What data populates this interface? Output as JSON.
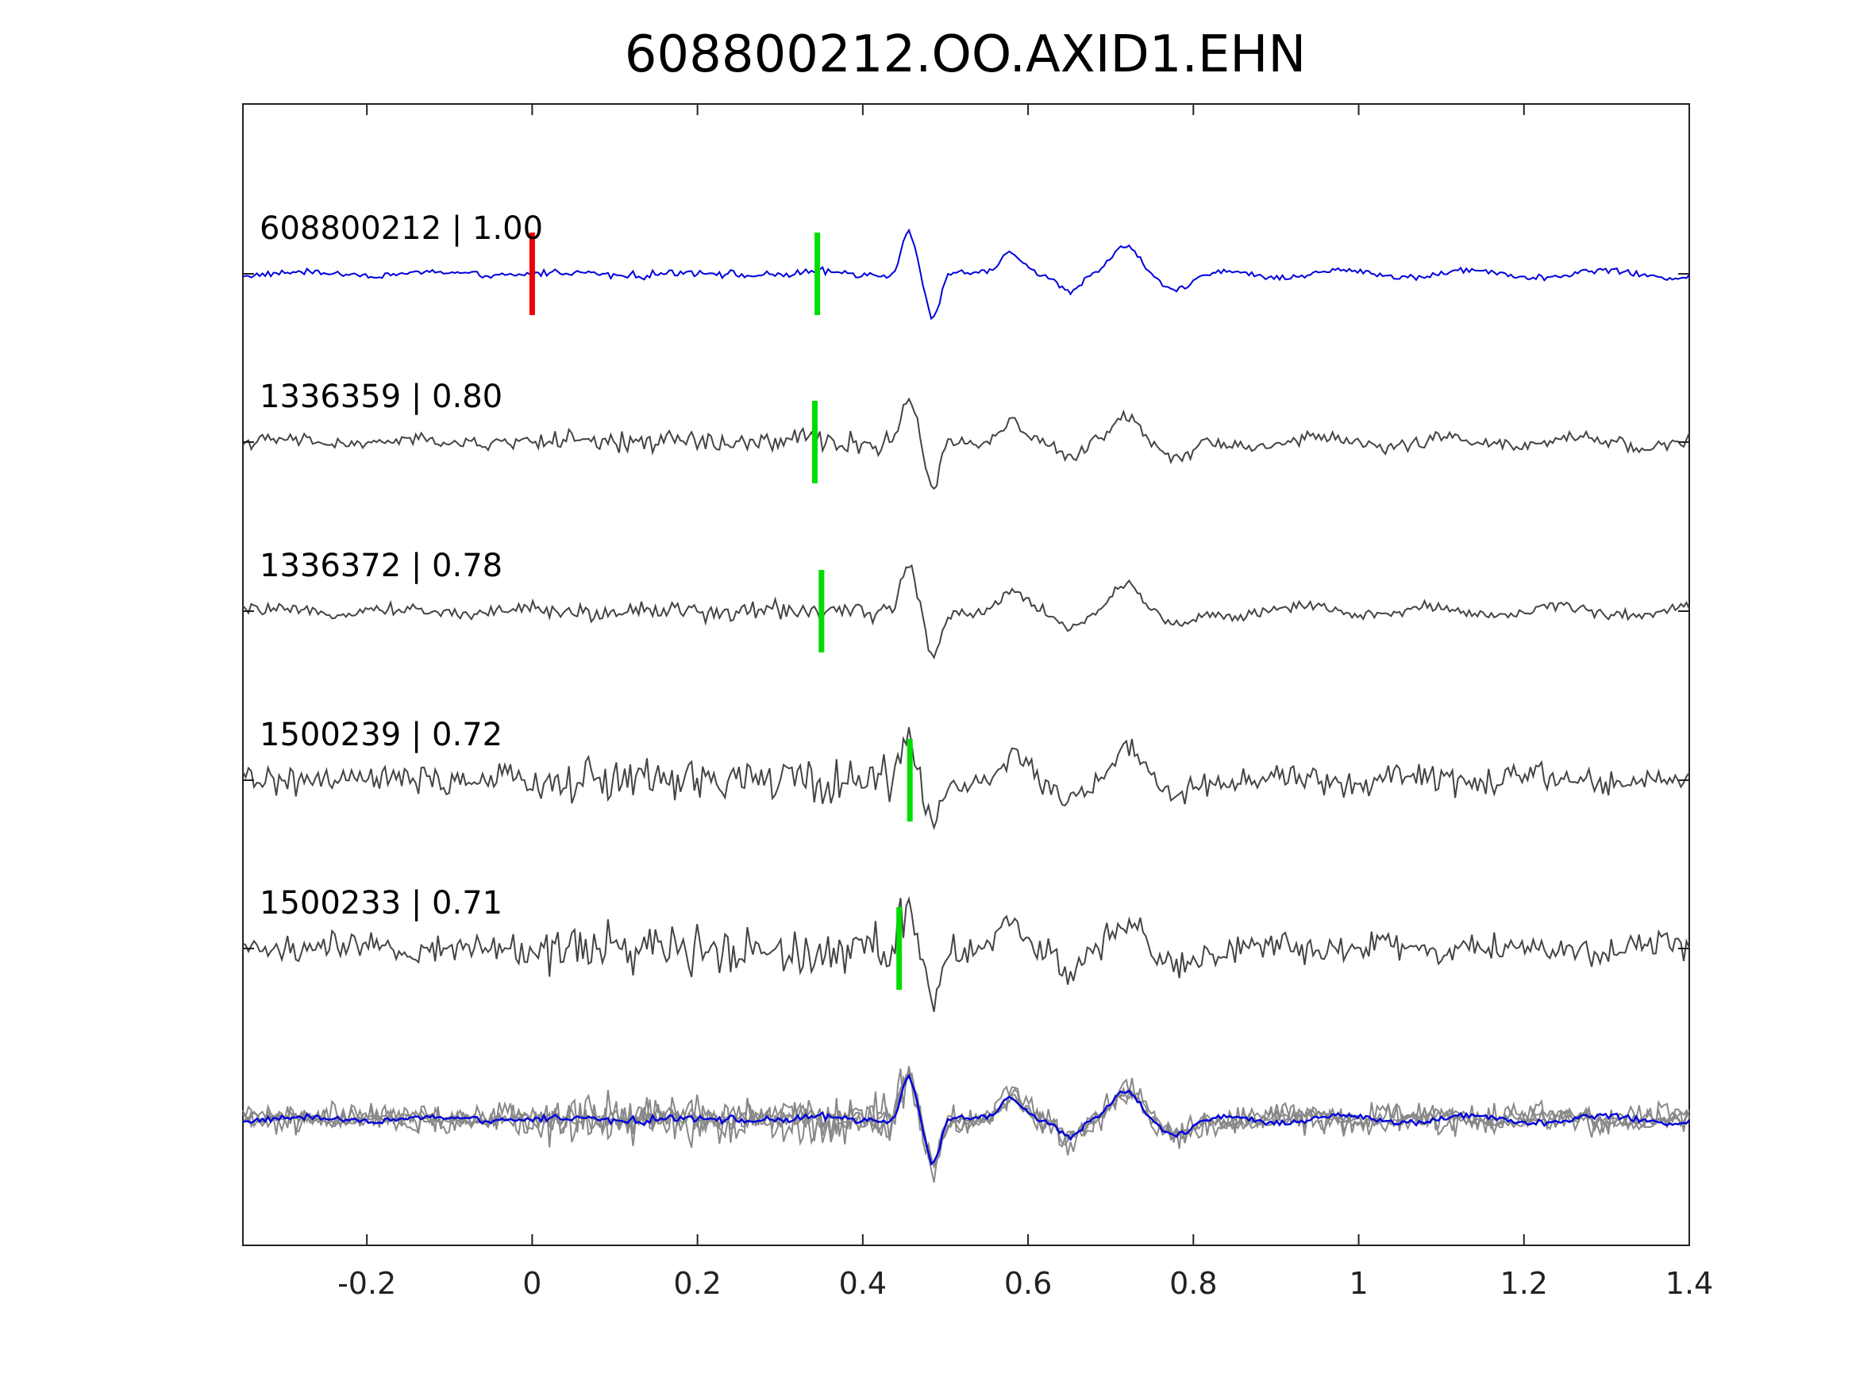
{
  "chart_data": {
    "type": "line",
    "title": "608800212.OO.AXID1.EHN",
    "xlabel": "",
    "ylabel": "",
    "xlim": [
      -0.35,
      1.4
    ],
    "x_ticks": [
      -0.2,
      0,
      0.2,
      0.4,
      0.6,
      0.8,
      1,
      1.2,
      1.4
    ],
    "x_tick_labels": [
      "-0.2",
      "0",
      "0.2",
      "0.4",
      "0.6",
      "0.8",
      "1",
      "1.2",
      "1.4"
    ],
    "grid": false,
    "traces": [
      {
        "label": "608800212 | 1.00",
        "event_id": "608800212",
        "correlation": 1.0,
        "color": "#0000dd",
        "pick": 0.345,
        "origin_marker": 0.0
      },
      {
        "label": "1336359 | 0.80",
        "event_id": "1336359",
        "correlation": 0.8,
        "color": "#444444",
        "pick": 0.342
      },
      {
        "label": "1336372 | 0.78",
        "event_id": "1336372",
        "correlation": 0.78,
        "color": "#444444",
        "pick": 0.35
      },
      {
        "label": "1500239 | 0.72",
        "event_id": "1500239",
        "correlation": 0.72,
        "color": "#444444",
        "pick": 0.457
      },
      {
        "label": "1500233 | 0.71",
        "event_id": "1500233",
        "correlation": 0.71,
        "color": "#444444",
        "pick": 0.444
      }
    ],
    "overlay": {
      "description_color_reference": "#0000dd",
      "description_color_others": "#888888"
    },
    "pick_color": "#00dd00",
    "origin_color": "#ee0000"
  }
}
